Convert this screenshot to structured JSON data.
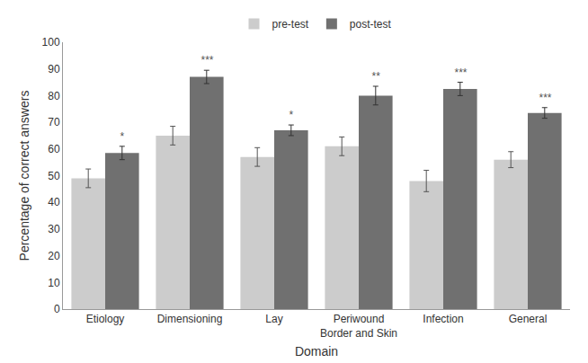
{
  "chart_data": {
    "type": "bar",
    "categories": [
      "Etiology",
      "Dimensioning",
      "Lay",
      "Periwound\nBorder and Skin",
      "Infection",
      "General"
    ],
    "series": [
      {
        "name": "pre-test",
        "color": "#cccccc",
        "values": [
          49,
          65,
          57,
          61,
          48,
          56
        ],
        "errors": [
          3.5,
          3.5,
          3.5,
          3.5,
          4.0,
          3.0
        ]
      },
      {
        "name": "post-test",
        "color": "#707070",
        "values": [
          58.5,
          87,
          67,
          80,
          82.5,
          73.5
        ],
        "errors": [
          2.5,
          2.5,
          2.0,
          3.5,
          2.5,
          2.0
        ],
        "annotations": [
          "*",
          "***",
          "*",
          "**",
          "***",
          "***"
        ]
      }
    ],
    "xlabel": "Domain",
    "ylabel": "Percentage of correct answers",
    "ylim": [
      0,
      100
    ],
    "yticks": [
      0,
      10,
      20,
      30,
      40,
      50,
      60,
      70,
      80,
      90,
      100
    ],
    "grid": false,
    "legend": "top"
  }
}
